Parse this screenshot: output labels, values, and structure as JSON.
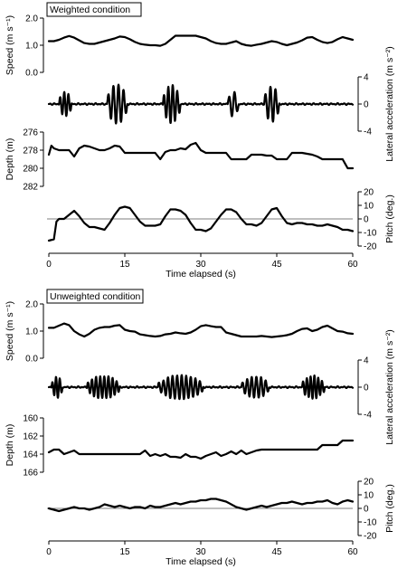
{
  "chart_data": [
    {
      "type": "line",
      "condition_label": "Weighted condition",
      "x_axis": {
        "xlabel": "Time elapsed (s)",
        "xlim": [
          0,
          60
        ],
        "ticks": [
          0,
          15,
          30,
          45,
          60
        ],
        "tick_labels": [
          "0",
          "15",
          "30",
          "45",
          "60"
        ]
      },
      "panels": [
        {
          "id": "speed",
          "ylabel": "Speed (m s⁻¹)",
          "axis_side": "left",
          "ylim": [
            0.0,
            2.0
          ],
          "inverted": false,
          "tick_values": [
            0.0,
            1.0,
            2.0
          ],
          "tick_labels": [
            "0.0",
            "1.0",
            "2.0"
          ],
          "x": [
            0,
            1,
            2,
            3,
            4,
            5,
            6,
            7,
            8,
            9,
            10,
            11,
            12,
            13,
            14,
            15,
            16,
            17,
            18,
            19,
            20,
            21,
            22,
            23,
            24,
            25,
            26,
            27,
            28,
            29,
            30,
            31,
            32,
            33,
            34,
            35,
            36,
            37,
            38,
            39,
            40,
            41,
            42,
            43,
            44,
            45,
            46,
            47,
            48,
            49,
            50,
            51,
            52,
            53,
            54,
            55,
            56,
            57,
            58,
            59,
            60
          ],
          "y": [
            1.15,
            1.15,
            1.2,
            1.28,
            1.34,
            1.28,
            1.18,
            1.08,
            1.05,
            1.05,
            1.1,
            1.15,
            1.2,
            1.25,
            1.32,
            1.3,
            1.22,
            1.12,
            1.05,
            1.02,
            1.0,
            1.0,
            0.98,
            1.05,
            1.2,
            1.35,
            1.35,
            1.35,
            1.35,
            1.35,
            1.3,
            1.25,
            1.15,
            1.08,
            1.05,
            1.05,
            1.1,
            1.15,
            1.05,
            1.0,
            0.98,
            1.02,
            1.05,
            1.1,
            1.15,
            1.12,
            1.05,
            1.0,
            1.05,
            1.1,
            1.18,
            1.28,
            1.3,
            1.2,
            1.12,
            1.08,
            1.12,
            1.22,
            1.3,
            1.25,
            1.2
          ]
        },
        {
          "id": "lateral_acceleration",
          "ylabel": "Lateral acceleration (m s⁻²)",
          "axis_side": "right",
          "ylim": [
            -4,
            4
          ],
          "inverted": false,
          "tick_values": [
            4,
            0,
            -4
          ],
          "tick_labels": [
            "4",
            "0",
            "-4"
          ],
          "baseline": 0,
          "bursts": [
            {
              "start": 2.0,
              "end": 4.5,
              "cycles": 3,
              "amplitude": 1.8
            },
            {
              "start": 11.5,
              "end": 15.5,
              "cycles": 4,
              "amplitude": 2.9
            },
            {
              "start": 22.5,
              "end": 26.0,
              "cycles": 4,
              "amplitude": 2.8
            },
            {
              "start": 35.3,
              "end": 37.5,
              "cycles": 2,
              "amplitude": 1.9
            },
            {
              "start": 42.5,
              "end": 45.5,
              "cycles": 3,
              "amplitude": 2.7
            }
          ]
        },
        {
          "id": "depth",
          "ylabel": "Depth (m)",
          "axis_side": "left",
          "ylim": [
            276,
            282
          ],
          "inverted": true,
          "tick_values": [
            276,
            278,
            280,
            282
          ],
          "tick_labels": [
            "276",
            "278",
            "280",
            "282"
          ],
          "x": [
            0,
            0.5,
            1,
            2,
            3,
            4,
            5,
            6,
            7,
            8,
            9,
            10,
            11,
            12,
            13,
            14,
            15,
            16,
            17,
            18,
            19,
            20,
            21,
            22,
            23,
            24,
            25,
            26,
            27,
            28,
            29,
            30,
            31,
            32,
            33,
            34,
            35,
            36,
            37,
            38,
            39,
            40,
            41,
            42,
            43,
            44,
            45,
            46,
            47,
            48,
            49,
            50,
            51,
            52,
            53,
            54,
            55,
            56,
            57,
            58,
            59,
            60
          ],
          "y": [
            278.5,
            277.5,
            277.8,
            278.0,
            278.0,
            278.0,
            278.7,
            277.8,
            277.5,
            277.6,
            277.8,
            278.0,
            278.0,
            277.8,
            277.5,
            277.6,
            278.3,
            278.3,
            278.3,
            278.3,
            278.3,
            278.3,
            278.3,
            279.0,
            278.2,
            278.0,
            278.0,
            277.8,
            277.9,
            277.4,
            277.2,
            278.0,
            278.3,
            278.3,
            278.3,
            278.3,
            278.3,
            279.0,
            279.0,
            279.0,
            279.0,
            278.5,
            278.5,
            278.5,
            278.6,
            278.6,
            279.0,
            279.0,
            279.0,
            278.3,
            278.3,
            278.3,
            278.4,
            278.5,
            278.7,
            279.0,
            279.0,
            279.0,
            279.0,
            279.0,
            280.0,
            280.0
          ]
        },
        {
          "id": "pitch",
          "ylabel": "Pitch (deg.)",
          "axis_side": "right",
          "ylim": [
            -20,
            20
          ],
          "inverted": false,
          "tick_values": [
            20,
            10,
            0,
            -10,
            -20
          ],
          "tick_labels": [
            "20",
            "10",
            "0",
            "-10",
            "-20"
          ],
          "reference_line": 0,
          "x": [
            0,
            1,
            1.5,
            2,
            3,
            4,
            5,
            6,
            7,
            8,
            9,
            10,
            11,
            12,
            13,
            14,
            15,
            16,
            17,
            18,
            19,
            20,
            21,
            22,
            23,
            24,
            25,
            26,
            27,
            28,
            29,
            30,
            31,
            32,
            33,
            34,
            35,
            36,
            37,
            38,
            39,
            40,
            41,
            42,
            43,
            44,
            45,
            46,
            47,
            48,
            49,
            50,
            51,
            52,
            53,
            54,
            55,
            56,
            57,
            58,
            59,
            60
          ],
          "y": [
            -16,
            -15,
            -2,
            0,
            0,
            3,
            6,
            2,
            -3,
            -6,
            -6,
            -7,
            -8,
            -3,
            3,
            8,
            9,
            8,
            3,
            -2,
            -5,
            -5,
            -5,
            -4,
            2,
            7,
            7,
            6,
            3,
            -3,
            -8,
            -8,
            -9,
            -7,
            -2,
            3,
            7,
            7,
            5,
            0,
            -4,
            -4,
            -5,
            -3,
            2,
            7,
            8,
            2,
            -3,
            -4,
            -3,
            -3,
            -4,
            -4,
            -5,
            -5,
            -4,
            -5,
            -6,
            -8,
            -8,
            -9
          ]
        }
      ]
    },
    {
      "type": "line",
      "condition_label": "Unweighted condition",
      "x_axis": {
        "xlabel": "Time elapsed (s)",
        "xlim": [
          0,
          60
        ],
        "ticks": [
          0,
          15,
          30,
          45,
          60
        ],
        "tick_labels": [
          "0",
          "15",
          "30",
          "45",
          "60"
        ]
      },
      "panels": [
        {
          "id": "speed",
          "ylabel": "Speed (m s⁻¹)",
          "axis_side": "left",
          "ylim": [
            0.0,
            2.0
          ],
          "inverted": false,
          "tick_values": [
            0.0,
            1.0,
            2.0
          ],
          "tick_labels": [
            "0.0",
            "1.0",
            "2.0"
          ],
          "x": [
            0,
            1,
            2,
            3,
            4,
            5,
            6,
            7,
            8,
            9,
            10,
            11,
            12,
            13,
            14,
            15,
            16,
            17,
            18,
            19,
            20,
            21,
            22,
            23,
            24,
            25,
            26,
            27,
            28,
            29,
            30,
            31,
            32,
            33,
            34,
            35,
            36,
            37,
            38,
            39,
            40,
            41,
            42,
            43,
            44,
            45,
            46,
            47,
            48,
            49,
            50,
            51,
            52,
            53,
            54,
            55,
            56,
            57,
            58,
            59,
            60
          ],
          "y": [
            1.12,
            1.12,
            1.2,
            1.28,
            1.22,
            1.0,
            0.88,
            0.8,
            0.9,
            1.05,
            1.12,
            1.15,
            1.15,
            1.2,
            1.22,
            1.05,
            1.0,
            0.98,
            0.88,
            0.85,
            0.82,
            0.8,
            0.82,
            0.88,
            0.9,
            0.95,
            0.92,
            0.9,
            0.95,
            1.05,
            1.18,
            1.22,
            1.18,
            1.15,
            1.15,
            0.95,
            0.9,
            0.85,
            0.8,
            0.8,
            0.8,
            0.8,
            0.82,
            0.8,
            0.78,
            0.8,
            0.82,
            0.85,
            0.9,
            1.0,
            1.08,
            1.1,
            1.0,
            1.05,
            1.15,
            1.2,
            1.1,
            1.0,
            0.98,
            0.92,
            0.9
          ]
        },
        {
          "id": "lateral_acceleration",
          "ylabel": "Lateral acceleration (m s⁻²)",
          "axis_side": "right",
          "ylim": [
            -4,
            4
          ],
          "inverted": false,
          "tick_values": [
            4,
            0,
            -4
          ],
          "tick_labels": [
            "4",
            "0",
            "-4"
          ],
          "baseline": 0,
          "bursts": [
            {
              "start": 0.5,
              "end": 2.7,
              "cycles": 3,
              "amplitude": 1.6
            },
            {
              "start": 7.5,
              "end": 14.0,
              "cycles": 8,
              "amplitude": 1.7
            },
            {
              "start": 21.5,
              "end": 30.5,
              "cycles": 10,
              "amplitude": 1.8
            },
            {
              "start": 38.0,
              "end": 43.5,
              "cycles": 6,
              "amplitude": 1.6
            },
            {
              "start": 50.0,
              "end": 54.5,
              "cycles": 6,
              "amplitude": 1.7
            }
          ]
        },
        {
          "id": "depth",
          "ylabel": "Depth (m)",
          "axis_side": "left",
          "ylim": [
            160,
            166
          ],
          "inverted": true,
          "tick_values": [
            160,
            162,
            164,
            166
          ],
          "tick_labels": [
            "160",
            "162",
            "164",
            "166"
          ],
          "x": [
            0,
            1,
            2,
            3,
            4,
            5,
            6,
            7,
            8,
            9,
            10,
            11,
            12,
            13,
            14,
            15,
            16,
            17,
            18,
            19,
            20,
            21,
            22,
            23,
            24,
            25,
            26,
            27,
            28,
            29,
            30,
            31,
            32,
            33,
            34,
            35,
            36,
            37,
            38,
            39,
            40,
            41,
            42,
            43,
            44,
            45,
            46,
            47,
            48,
            49,
            50,
            51,
            52,
            53,
            54,
            55,
            56,
            57,
            58,
            59,
            60
          ],
          "y": [
            163.8,
            163.5,
            163.5,
            164.0,
            163.8,
            163.6,
            164.0,
            164.0,
            164.0,
            164.0,
            164.0,
            164.0,
            164.0,
            164.0,
            164.0,
            164.0,
            164.0,
            164.0,
            164.0,
            163.6,
            164.2,
            164.0,
            164.2,
            164.0,
            164.3,
            164.3,
            164.4,
            164.0,
            164.3,
            164.3,
            164.5,
            164.2,
            164.0,
            163.8,
            164.2,
            164.0,
            163.7,
            164.0,
            163.6,
            164.0,
            163.8,
            163.6,
            163.5,
            163.5,
            163.5,
            163.5,
            163.5,
            163.5,
            163.5,
            163.5,
            163.5,
            163.5,
            163.5,
            163.5,
            163.0,
            163.0,
            163.0,
            163.0,
            162.5,
            162.5,
            162.5
          ]
        },
        {
          "id": "pitch",
          "ylabel": "Pitch (deg.)",
          "axis_side": "right",
          "ylim": [
            -20,
            20
          ],
          "inverted": false,
          "tick_values": [
            20,
            10,
            0,
            -10,
            -20
          ],
          "tick_labels": [
            "20",
            "10",
            "0",
            "-10",
            "-20"
          ],
          "reference_line": 0,
          "x": [
            0,
            1,
            2,
            3,
            4,
            5,
            6,
            7,
            8,
            9,
            10,
            11,
            12,
            13,
            14,
            15,
            16,
            17,
            18,
            19,
            20,
            21,
            22,
            23,
            24,
            25,
            26,
            27,
            28,
            29,
            30,
            31,
            32,
            33,
            34,
            35,
            36,
            37,
            38,
            39,
            40,
            41,
            42,
            43,
            44,
            45,
            46,
            47,
            48,
            49,
            50,
            51,
            52,
            53,
            54,
            55,
            56,
            57,
            58,
            59,
            60
          ],
          "y": [
            0,
            -1,
            -2,
            -1,
            0,
            1,
            0,
            0,
            -1,
            0,
            1,
            3,
            2,
            1,
            2,
            1,
            0,
            1,
            1,
            0,
            2,
            1,
            1,
            2,
            3,
            4,
            3,
            4,
            5,
            5,
            6,
            6,
            7,
            7,
            6,
            5,
            3,
            1,
            0,
            -1,
            0,
            1,
            2,
            1,
            2,
            3,
            4,
            4,
            5,
            4,
            3,
            4,
            4,
            5,
            5,
            6,
            4,
            3,
            5,
            6,
            5
          ]
        }
      ]
    }
  ]
}
